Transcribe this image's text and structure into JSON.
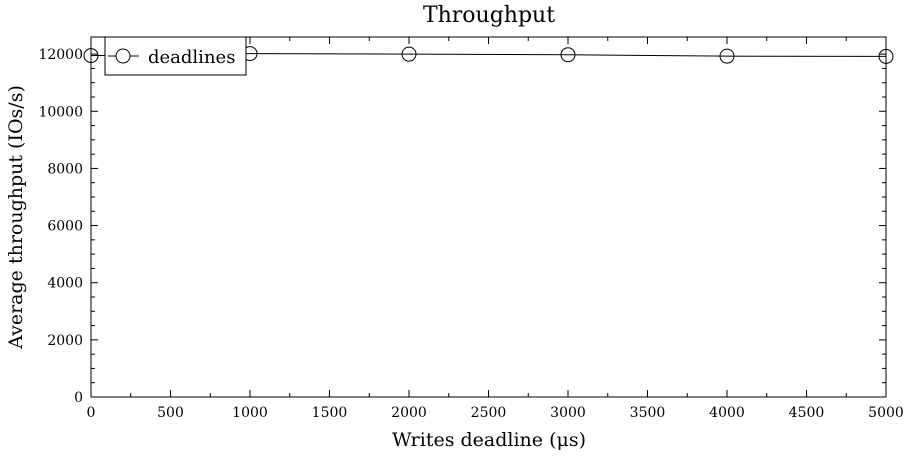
{
  "chart_data": {
    "type": "line",
    "title": "Throughput",
    "xlabel": "Writes deadline (μs)",
    "ylabel": "Average throughput (IOs/s)",
    "xlim": [
      0,
      5000
    ],
    "ylim": [
      0,
      12600
    ],
    "xticks": [
      0,
      500,
      1000,
      1500,
      2000,
      2500,
      3000,
      3500,
      4000,
      4500,
      5000
    ],
    "yticks": [
      0,
      2000,
      4000,
      6000,
      8000,
      10000,
      12000
    ],
    "grid": false,
    "legend_position": "top-left",
    "series": [
      {
        "name": "deadlines",
        "marker": "open-circle",
        "color": "#000000",
        "x": [
          0,
          1000,
          2000,
          3000,
          4000,
          5000
        ],
        "y": [
          11950,
          12020,
          12000,
          11980,
          11930,
          11920
        ]
      }
    ]
  }
}
